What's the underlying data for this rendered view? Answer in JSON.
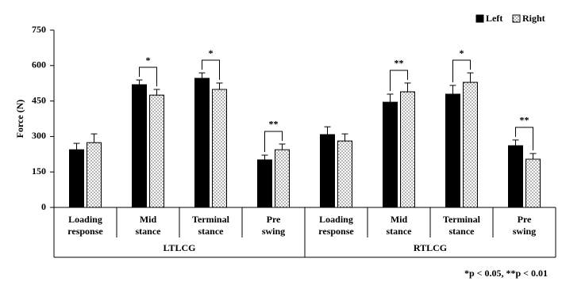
{
  "chart_data": {
    "type": "bar",
    "y_label": "Force (N)",
    "categories": [
      [
        "Loading",
        "response"
      ],
      [
        "Mid",
        "stance"
      ],
      [
        "Terminal",
        "stance"
      ],
      [
        "Pre",
        "swing"
      ],
      [
        "Loading",
        "response"
      ],
      [
        "Mid",
        "stance"
      ],
      [
        "Terminal",
        "stance"
      ],
      [
        "Pre",
        "swing"
      ]
    ],
    "group_labels": [
      "LTLCG",
      "RTLCG"
    ],
    "series": [
      {
        "name": "Left",
        "color": "#000000",
        "values": [
          244,
          519,
          546,
          201,
          308,
          445,
          479,
          261
        ],
        "errors": [
          27,
          20,
          23,
          20,
          33,
          34,
          37,
          24
        ]
      },
      {
        "name": "Right",
        "color": "#ffffff",
        "values": [
          274,
          475,
          499,
          244,
          281,
          489,
          529,
          204
        ],
        "errors": [
          37,
          24,
          27,
          24,
          30,
          37,
          40,
          24
        ]
      }
    ],
    "significance": [
      null,
      "*",
      "*",
      "**",
      null,
      "**",
      "*",
      "**"
    ],
    "footnote": "*p < 0.05, **p < 0.01",
    "ylim": [
      0,
      750
    ],
    "yticks": [
      0,
      150,
      300,
      450,
      600,
      750
    ],
    "legend": "top-right"
  }
}
